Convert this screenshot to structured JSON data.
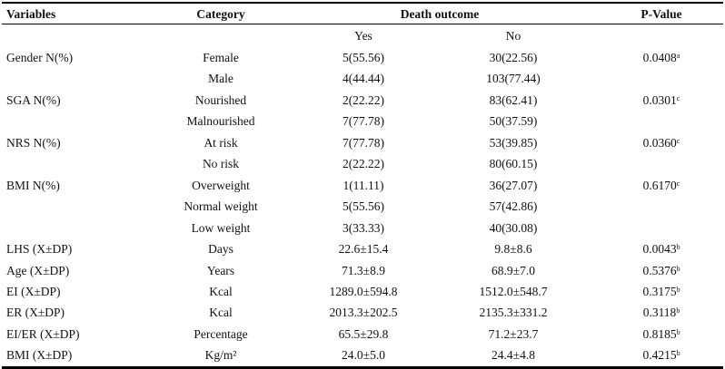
{
  "header": {
    "variables": "Variables",
    "category": "Category",
    "outcome": "Death outcome",
    "pvalue": "P-Value",
    "yes": "Yes",
    "no": "No"
  },
  "rows": [
    {
      "variable": "Gender N(%)",
      "category": "Female",
      "yes": "5(55.56)",
      "no": "30(22.56)",
      "p": "0.0408",
      "sup": "a"
    },
    {
      "variable": "",
      "category": "Male",
      "yes": "4(44.44)",
      "no": "103(77.44)",
      "p": "",
      "sup": ""
    },
    {
      "variable": "SGA N(%)",
      "category": "Nourished",
      "yes": "2(22.22)",
      "no": "83(62.41)",
      "p": "0.0301",
      "sup": "c"
    },
    {
      "variable": "",
      "category": "Malnourished",
      "yes": "7(77.78)",
      "no": "50(37.59)",
      "p": "",
      "sup": ""
    },
    {
      "variable": "NRS N(%)",
      "category": "At risk",
      "yes": "7(77.78)",
      "no": "53(39.85)",
      "p": "0.0360",
      "sup": "c"
    },
    {
      "variable": "",
      "category": "No risk",
      "yes": "2(22.22)",
      "no": "80(60.15)",
      "p": "",
      "sup": ""
    },
    {
      "variable": "BMI N(%)",
      "category": "Overweight",
      "yes": "1(11.11)",
      "no": "36(27.07)",
      "p": "0.6170",
      "sup": "c"
    },
    {
      "variable": "",
      "category": "Normal weight",
      "yes": "5(55.56)",
      "no": "57(42.86)",
      "p": "",
      "sup": ""
    },
    {
      "variable": "",
      "category": "Low weight",
      "yes": "3(33.33)",
      "no": "40(30.08)",
      "p": "",
      "sup": ""
    },
    {
      "variable": "LHS (X±DP)",
      "category": "Days",
      "yes": "22.6±15.4",
      "no": "9.8±8.6",
      "p": "0.0043",
      "sup": "b"
    },
    {
      "variable": "Age (X±DP)",
      "category": "Years",
      "yes": "71.3±8.9",
      "no": "68.9±7.0",
      "p": "0.5376",
      "sup": "b"
    },
    {
      "variable": "EI (X±DP)",
      "category": "Kcal",
      "yes": "1289.0±594.8",
      "no": "1512.0±548.7",
      "p": "0.3175",
      "sup": "b"
    },
    {
      "variable": "ER (X±DP)",
      "category": "Kcal",
      "yes": "2013.3±202.5",
      "no": "2135.3±331.2",
      "p": "0.3118",
      "sup": "b"
    },
    {
      "variable": "EI/ER (X±DP)",
      "category": "Percentage",
      "yes": "65.5±29.8",
      "no": "71.2±23.7",
      "p": "0.8185",
      "sup": "b"
    },
    {
      "variable": "BMI (X±DP)",
      "category": "Kg/m²",
      "yes": "24.0±5.0",
      "no": "24.4±4.8",
      "p": "0.4215",
      "sup": "b"
    }
  ]
}
